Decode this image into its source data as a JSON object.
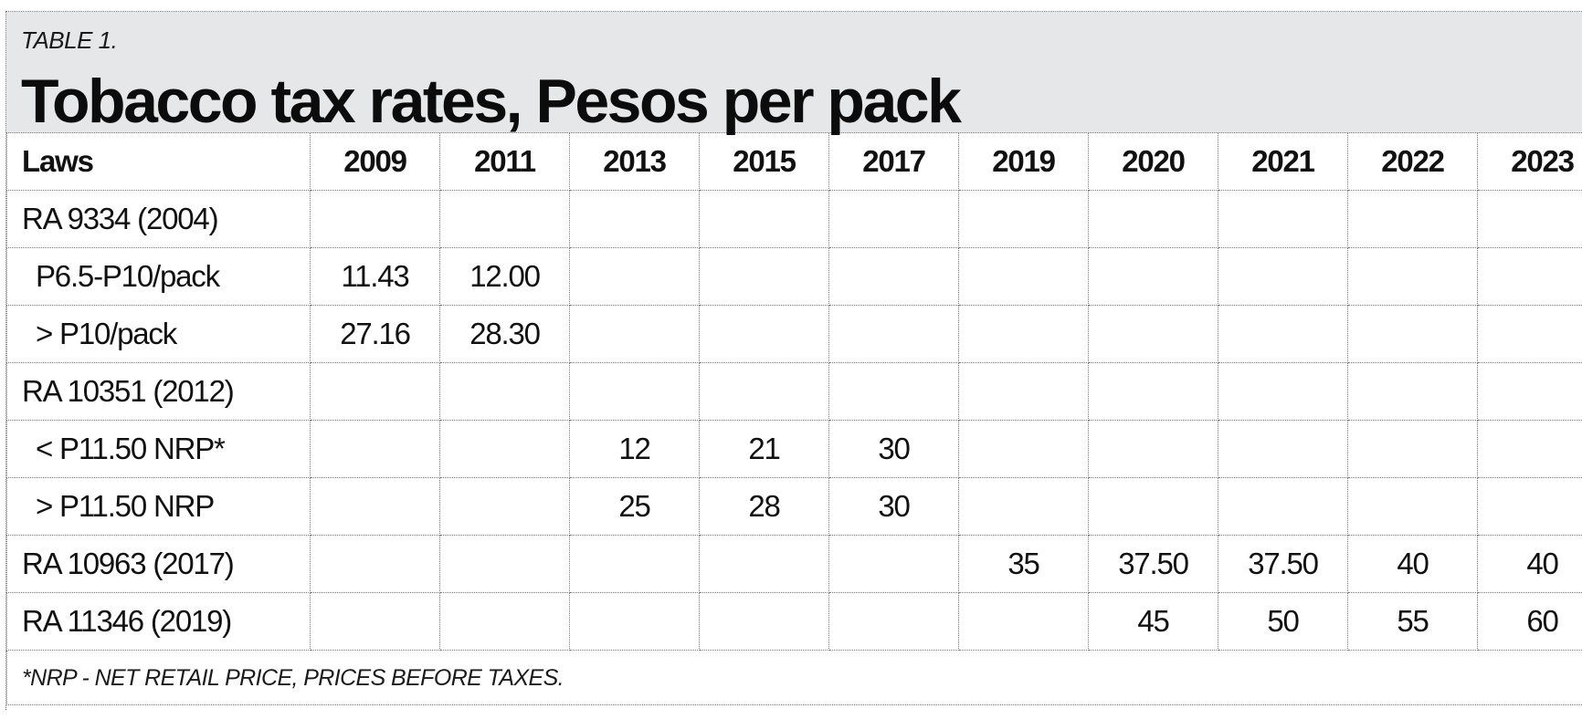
{
  "table_label": "TABLE 1.",
  "title": "Tobacco tax rates, Pesos per pack",
  "header": {
    "laws": "Laws",
    "years": [
      "2009",
      "2011",
      "2013",
      "2015",
      "2017",
      "2019",
      "2020",
      "2021",
      "2022",
      "2023"
    ]
  },
  "rows": [
    {
      "law": "RA 9334 (2004)",
      "indent": false,
      "cells": [
        "",
        "",
        "",
        "",
        "",
        "",
        "",
        "",
        "",
        ""
      ]
    },
    {
      "law": "P6.5-P10/pack",
      "indent": true,
      "cells": [
        "11.43",
        "12.00",
        "",
        "",
        "",
        "",
        "",
        "",
        "",
        ""
      ]
    },
    {
      "law": "> P10/pack",
      "indent": true,
      "cells": [
        "27.16",
        "28.30",
        "",
        "",
        "",
        "",
        "",
        "",
        "",
        ""
      ]
    },
    {
      "law": "RA 10351 (2012)",
      "indent": false,
      "cells": [
        "",
        "",
        "",
        "",
        "",
        "",
        "",
        "",
        "",
        ""
      ]
    },
    {
      "law": "< P11.50 NRP*",
      "indent": true,
      "cells": [
        "",
        "",
        "12",
        "21",
        "30",
        "",
        "",
        "",
        "",
        ""
      ]
    },
    {
      "law": "> P11.50 NRP",
      "indent": true,
      "cells": [
        "",
        "",
        "25",
        "28",
        "30",
        "",
        "",
        "",
        "",
        ""
      ]
    },
    {
      "law": "RA 10963 (2017)",
      "indent": false,
      "cells": [
        "",
        "",
        "",
        "",
        "",
        "35",
        "37.50",
        "37.50",
        "40",
        "40"
      ]
    },
    {
      "law": "RA 11346 (2019)",
      "indent": false,
      "cells": [
        "",
        "",
        "",
        "",
        "",
        "",
        "45",
        "50",
        "55",
        "60"
      ]
    }
  ],
  "footnote": "*NRP - NET RETAIL PRICE, PRICES BEFORE TAXES.",
  "colors": {
    "header_bg": "#e6e7e8",
    "grid": "#7a7a7a",
    "text": "#111111"
  }
}
